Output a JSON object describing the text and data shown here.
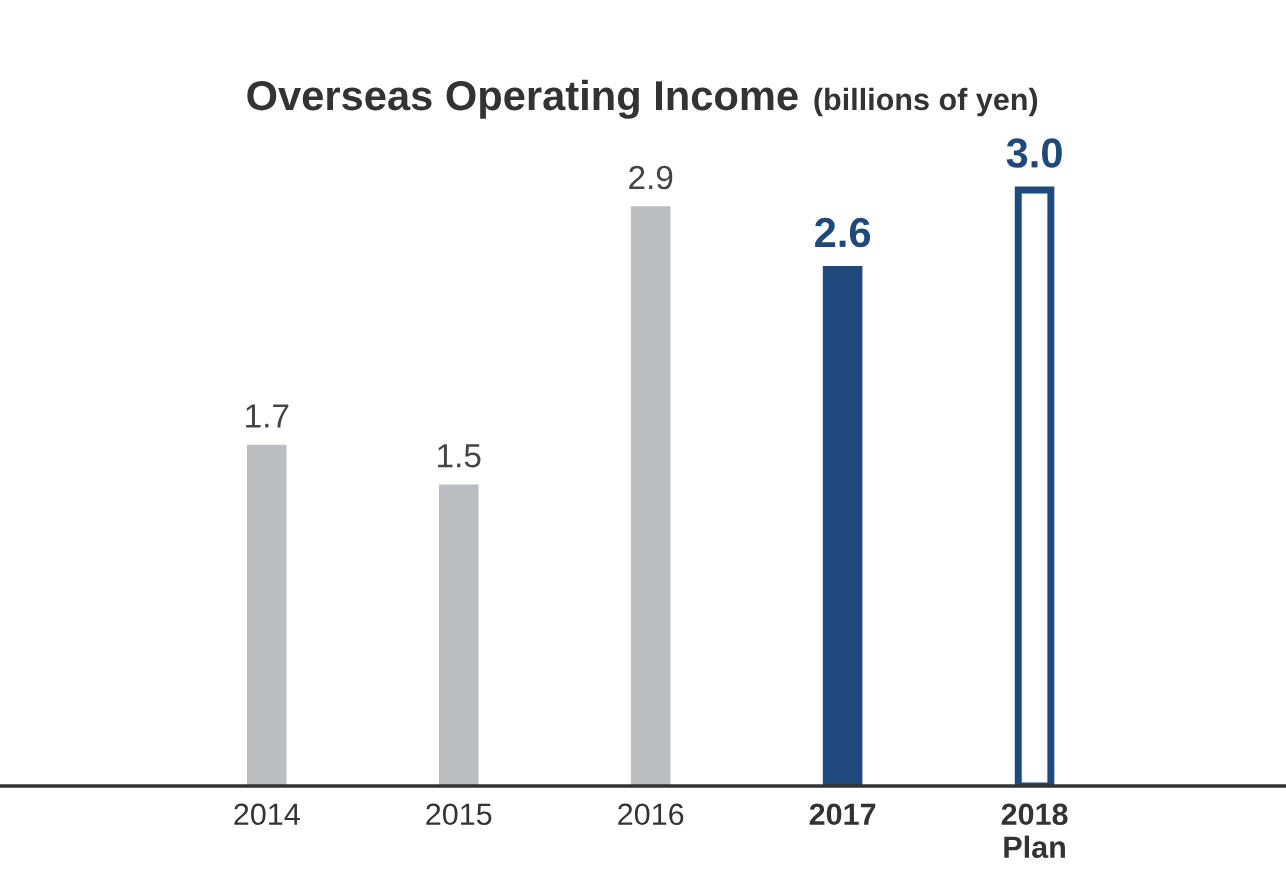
{
  "chart_data": {
    "type": "bar",
    "title": "Overseas Operating Income",
    "subtitle": "(billions of yen)",
    "categories": [
      "2014",
      "2015",
      "2016",
      "2017",
      "2018\nPlan"
    ],
    "values": [
      1.7,
      1.5,
      2.9,
      2.6,
      3.0
    ],
    "colors": [
      "#bcbdc0",
      "#bcbdc0",
      "#bcbdc0",
      "#1f497d",
      "#ffffff"
    ],
    "value_labels": [
      "1.7",
      "1.5",
      "2.9",
      "2.6",
      "3.0"
    ],
    "grid": false,
    "legend": false
  }
}
